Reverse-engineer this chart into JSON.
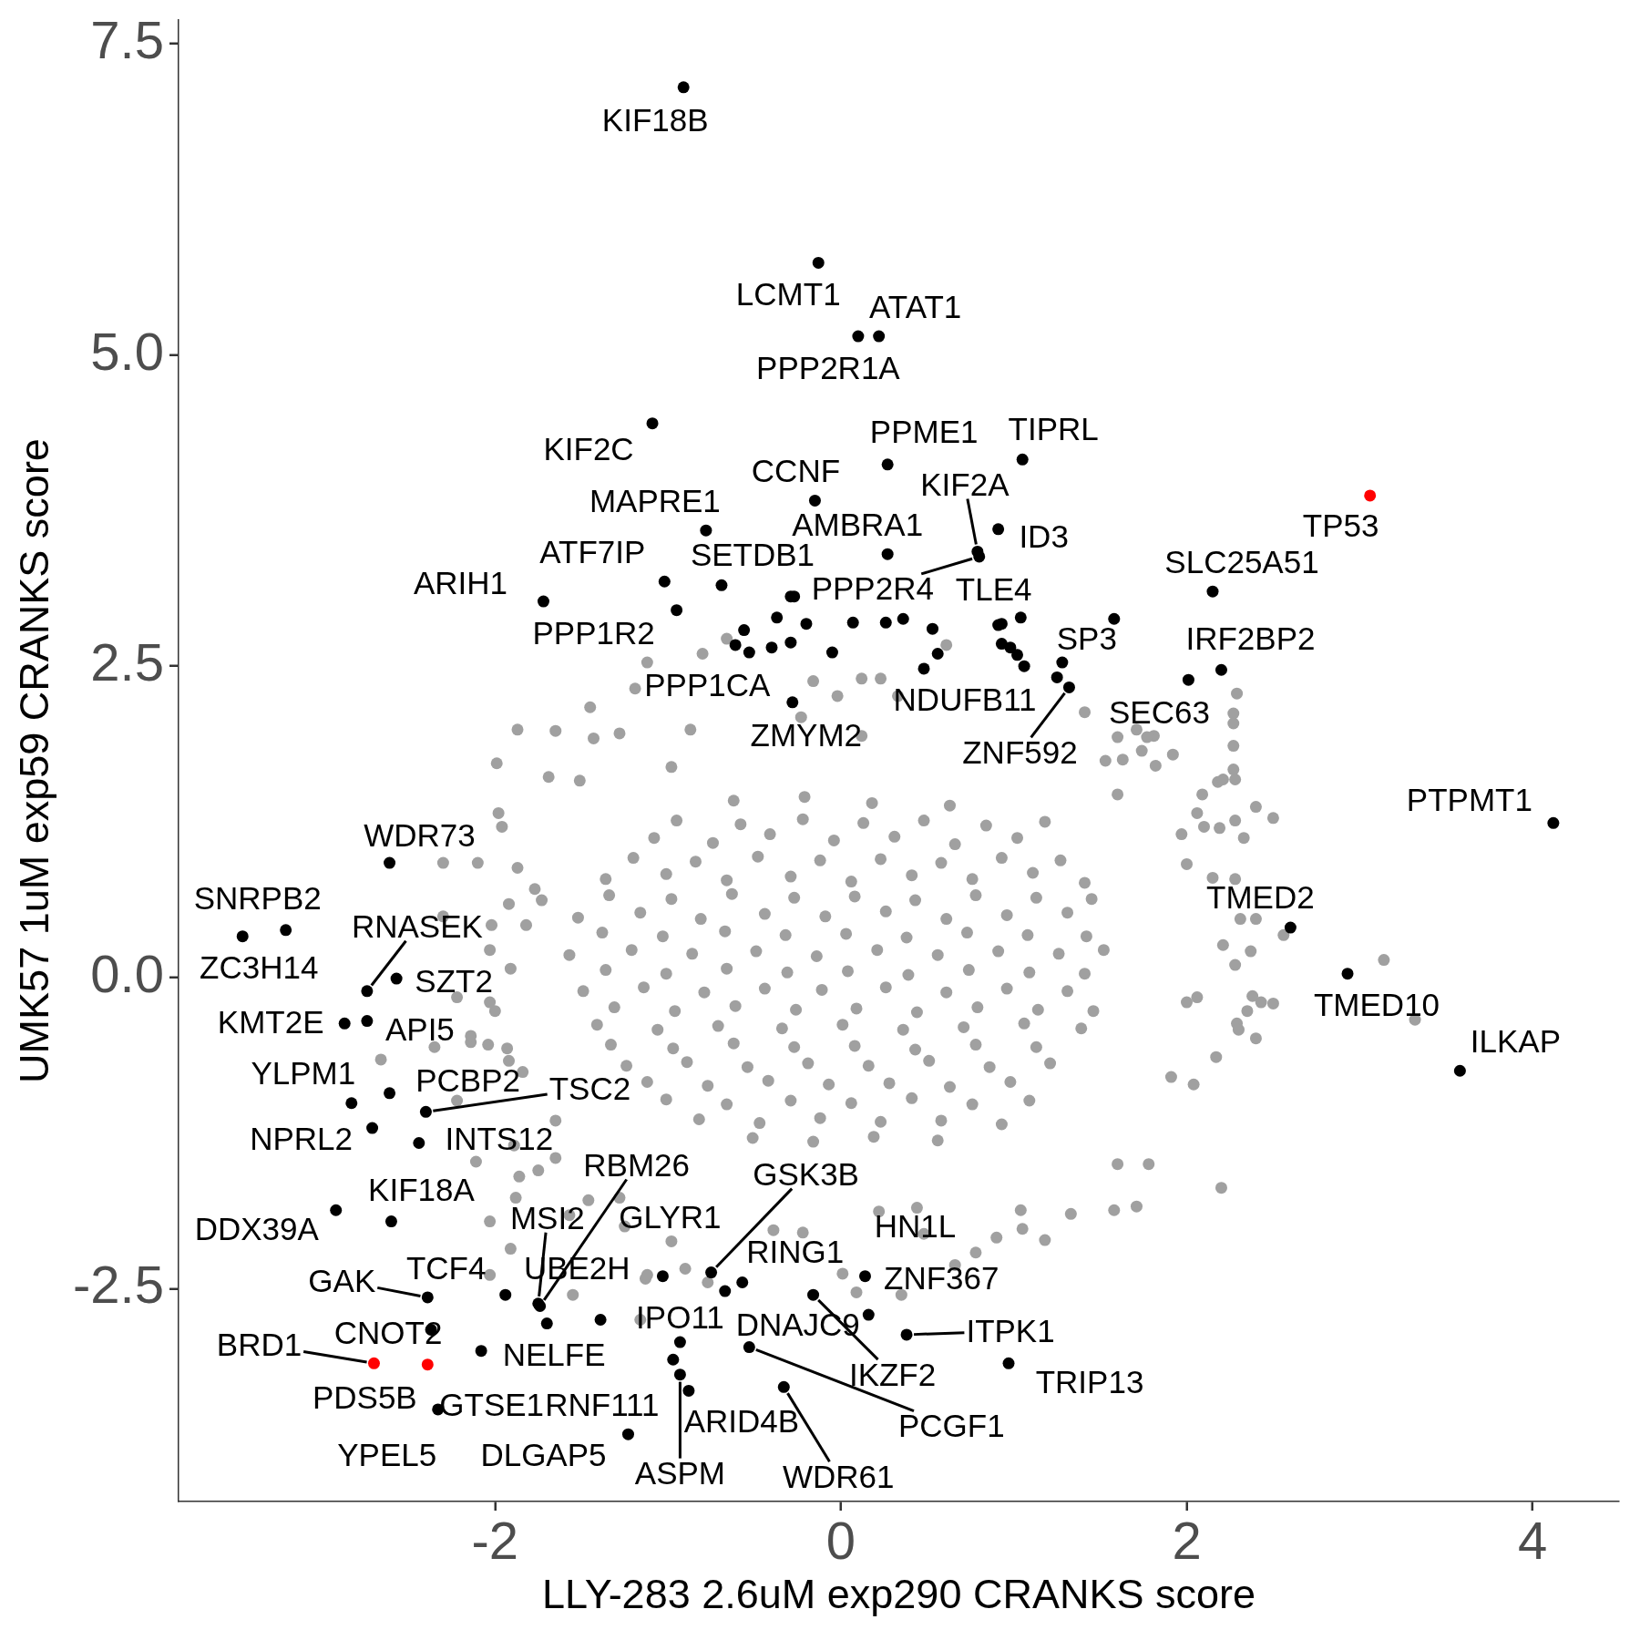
{
  "chart_data": {
    "type": "scatter",
    "xlabel": "LLY-283 2.6uM exp290 CRANKS score",
    "ylabel": "UMK57 1uM exp59 CRANKS score",
    "xlim": [
      -3.83,
      4.5
    ],
    "ylim": [
      -4.21,
      7.69
    ],
    "xticks": [
      -2,
      0,
      2,
      4
    ],
    "yticks": [
      -2.5,
      {
        "value": 0,
        "label": "0.0"
      },
      2.5,
      {
        "value": 5,
        "label": "5.0"
      },
      7.5
    ],
    "grid": false,
    "legend": false,
    "marker": "circle",
    "series": [
      {
        "color": "#a0a0a0",
        "x": [
          -0.66,
          -0.8,
          -1.12,
          -1.19,
          -1.45,
          -1.87,
          -1.65,
          -1.43,
          -1.28,
          -1.99,
          -1.69,
          -1.51,
          -1.98,
          -1.96,
          -2.3,
          -2.1,
          -1.87,
          -1.77,
          -1.73,
          -2.02,
          -1.82,
          -2.03,
          -1.91,
          -2.0,
          -2.14,
          -1.93,
          -1.84,
          -1.65,
          -1.89,
          -1.65,
          -1.86,
          -1.28,
          -1.57,
          1.18,
          1.04,
          1.78,
          1.6,
          1.58,
          1.71,
          2.2,
          2.04,
          2.17,
          2.4,
          2.29,
          2.43,
          2.5,
          2.38,
          2.56,
          2.4,
          2.31,
          2.5,
          2.4,
          2.06,
          2.27,
          2.29,
          2.27,
          2.27,
          2.18,
          1.6,
          1.74,
          1.92,
          1.53,
          1.81,
          1.41,
          0.61,
          0.23,
          0.12,
          -0.16,
          -0.02,
          0.33,
          0.12,
          -0.23,
          -0.87,
          -0.98,
          -1.91,
          -1.55,
          -1.13,
          -0.9,
          -1.16,
          -0.77,
          0.09,
          0.01,
          0.35,
          0.66,
          1.33,
          0.78,
          1.05,
          0.9,
          0.48,
          -0.22,
          -0.39,
          -0.98,
          -1.25,
          -1.46,
          -1.75,
          0.22,
          0.44,
          2.27,
          2.28,
          2.21,
          2.09,
          1.82,
          1.77,
          1.71,
          1.6,
          1.63,
          2.33,
          2.28,
          2.19,
          2.1,
          1.97,
          2.0,
          2.28,
          2.15,
          2.37,
          2.21,
          2.28,
          2.35,
          2.3,
          1.91,
          3.14,
          3.32,
          2.06,
          2.0,
          -1.92,
          -2.3,
          -2.22,
          -2.03,
          -2.14,
          -2.04,
          -2.35,
          -2.66,
          -1.92,
          -2.22,
          -2.11,
          -1.88,
          -2.03,
          -2.03,
          -1.12,
          -0.62,
          -0.21,
          0.18,
          0.63,
          -1.08,
          -0.74,
          -0.41,
          -0.04,
          0.31,
          0.66,
          1.02,
          -1.36,
          -1.01,
          -0.66,
          -0.29,
          0.06,
          0.41,
          0.76,
          1.11,
          1.41,
          -1.52,
          -1.16,
          -0.81,
          -0.44,
          -0.09,
          0.26,
          0.61,
          0.96,
          1.31,
          -1.57,
          -1.21,
          -0.86,
          -0.49,
          -0.14,
          0.21,
          0.56,
          0.91,
          1.26,
          1.52,
          -1.49,
          -1.14,
          -0.79,
          -0.44,
          -0.11,
          0.26,
          0.61,
          0.96,
          1.31,
          -1.41,
          -1.06,
          -0.71,
          -0.34,
          0.01,
          0.36,
          0.71,
          1.06,
          1.39,
          -1.24,
          -0.89,
          -0.54,
          -0.19,
          0.16,
          0.51,
          0.86,
          1.21,
          -1.01,
          -0.66,
          -0.29,
          0.06,
          0.41,
          0.76,
          1.09,
          -0.51,
          -0.16,
          0.19,
          0.56,
          -0.95,
          -0.58,
          -0.22,
          0.13,
          0.48,
          0.84,
          1.18,
          -1.2,
          -0.84,
          -0.48,
          -0.12,
          0.23,
          0.58,
          0.93,
          1.27,
          -1.34,
          -0.98,
          -0.63,
          -0.27,
          0.08,
          0.43,
          0.78,
          1.13,
          1.45,
          -1.38,
          -1.03,
          -0.67,
          -0.32,
          0.03,
          0.38,
          0.73,
          1.08,
          1.42,
          -1.36,
          -1.01,
          -0.66,
          -0.31,
          0.04,
          0.39,
          0.74,
          1.09,
          1.41,
          -1.31,
          -0.96,
          -0.61,
          -0.26,
          0.09,
          0.44,
          0.79,
          1.14,
          1.46,
          -1.33,
          -0.97,
          -0.62,
          -0.27,
          0.08,
          0.43,
          0.78,
          1.13,
          -1.12,
          -0.77,
          -0.42,
          -0.07,
          0.28,
          0.63,
          0.98,
          -0.82,
          -0.47,
          -0.12,
          0.23,
          0.58,
          0.93
        ],
        "values": [
          2.72,
          2.6,
          2.53,
          2.32,
          2.17,
          1.99,
          1.98,
          1.92,
          1.96,
          1.72,
          1.61,
          1.58,
          1.32,
          1.21,
          0.92,
          0.92,
          0.88,
          0.71,
          0.62,
          0.42,
          0.42,
          0.22,
          0.07,
          -0.27,
          -0.52,
          -0.57,
          -0.76,
          -1.15,
          -1.35,
          -1.45,
          -1.6,
          -1.77,
          -1.91,
          -2.11,
          -1.87,
          -1.5,
          -1.5,
          -1.87,
          -1.84,
          -1.69,
          -0.86,
          -0.64,
          -0.49,
          -0.37,
          -0.2,
          -0.21,
          -0.15,
          0.34,
          0.47,
          0.47,
          1.28,
          1.37,
          1.32,
          1.67,
          2.28,
          2.04,
          1.86,
          1.57,
          1.47,
          1.82,
          1.79,
          1.74,
          1.94,
          2.13,
          2.67,
          2.4,
          2.4,
          2.38,
          2.26,
          2.26,
          1.94,
          2.09,
          1.99,
          1.69,
          -2.18,
          -2.55,
          -2.42,
          -2.34,
          -2.75,
          -2.45,
          -2.53,
          -2.38,
          -2.55,
          -2.31,
          -1.9,
          -2.21,
          -2.02,
          -2.09,
          -2.06,
          -2.05,
          -2.03,
          -2.12,
          -2.0,
          -1.79,
          -1.55,
          -1.88,
          -1.85,
          2.12,
          1.59,
          1.59,
          1.47,
          1.7,
          1.93,
          1.99,
          1.93,
          1.75,
          1.12,
          1.26,
          1.2,
          1.21,
          1.15,
          0.91,
          0.79,
          0.8,
          0.21,
          0.26,
          0.1,
          -0.27,
          -0.42,
          -0.8,
          0.14,
          -0.34,
          -0.16,
          -0.2,
          0.59,
          0.49,
          -0.16,
          -0.2,
          -0.47,
          -0.54,
          -0.56,
          -0.66,
          -0.67,
          -0.99,
          -1.48,
          -1.77,
          -1.96,
          -2.39,
          -2.39,
          1.42,
          1.45,
          1.4,
          1.38,
          1.12,
          1.08,
          1.15,
          1.1,
          1.13,
          1.07,
          1.12,
          0.79,
          0.83,
          0.78,
          0.81,
          0.77,
          0.82,
          0.79,
          0.84,
          0.76,
          0.48,
          0.52,
          0.47,
          0.51,
          0.49,
          0.53,
          0.47,
          0.5,
          0.52,
          0.18,
          0.22,
          0.19,
          0.21,
          0.17,
          0.22,
          0.18,
          0.21,
          0.19,
          0.22,
          -0.11,
          -0.08,
          -0.12,
          -0.09,
          -0.1,
          -0.08,
          -0.12,
          -0.09,
          -0.11,
          -0.38,
          -0.42,
          -0.39,
          -0.41,
          -0.38,
          -0.42,
          -0.4,
          -0.37,
          -0.41,
          -0.71,
          -0.68,
          -0.72,
          -0.69,
          -0.71,
          -0.67,
          -0.72,
          -0.69,
          -0.98,
          -1.02,
          -0.99,
          -1.01,
          -0.97,
          -1.02,
          -0.99,
          -1.29,
          -1.32,
          -1.28,
          -1.31,
          1.26,
          1.23,
          1.27,
          1.24,
          1.26,
          1.22,
          1.25,
          0.96,
          0.93,
          0.97,
          0.94,
          0.95,
          0.92,
          0.96,
          0.94,
          0.66,
          0.63,
          0.67,
          0.64,
          0.65,
          0.62,
          0.66,
          0.64,
          0.63,
          0.36,
          0.33,
          0.37,
          0.34,
          0.35,
          0.32,
          0.36,
          0.34,
          0.33,
          0.06,
          0.03,
          0.07,
          0.04,
          0.05,
          0.02,
          0.06,
          0.04,
          0.03,
          -0.24,
          -0.27,
          -0.23,
          -0.26,
          -0.25,
          -0.28,
          -0.24,
          -0.26,
          -0.27,
          -0.54,
          -0.57,
          -0.53,
          -0.56,
          -0.55,
          -0.58,
          -0.54,
          -0.56,
          -0.84,
          -0.87,
          -0.83,
          -0.86,
          -0.85,
          -0.88,
          -0.84,
          -1.14,
          -1.17,
          -1.13,
          -1.16,
          -1.15,
          -1.18
        ]
      },
      {
        "color": "#000000",
        "x": [
          -0.91,
          -0.13,
          0.1,
          0.22,
          -1.09,
          0.27,
          1.05,
          -0.15,
          0.79,
          0.91,
          0.91,
          0.27,
          -0.78,
          -1.02,
          -0.69,
          -1.72,
          -0.95,
          0.8,
          -0.53,
          -0.28,
          0.48,
          1.28,
          1.32,
          2.15,
          2.2,
          2.01,
          4.12,
          2.6,
          2.93,
          3.58,
          -2.61,
          -3.21,
          -3.46,
          -2.74,
          -2.57,
          -2.87,
          -2.74,
          -2.83,
          -2.61,
          -2.4,
          -2.71,
          -2.44,
          -2.6,
          -2.92,
          -2.39,
          -1.94,
          -2.37,
          -2.08,
          -2.33,
          -0.97,
          -1.23,
          -0.93,
          -0.88,
          -0.93,
          -1.74,
          -1.75,
          -1.7,
          -1.03,
          -0.75,
          -0.57,
          -0.67,
          -0.16,
          -0.53,
          -0.33,
          0.14,
          0.16,
          0.38,
          0.97,
          -0.29,
          -0.27,
          -0.56,
          -0.61,
          -0.4,
          -0.37,
          -0.29,
          -0.2,
          -0.05,
          0.07,
          0.26,
          0.36,
          0.53,
          0.56,
          0.93,
          1.04,
          0.93,
          0.98,
          1.02,
          1.06,
          1.25,
          1.58,
          -1.39
        ],
        "values": [
          7.15,
          5.74,
          5.15,
          5.15,
          4.45,
          4.12,
          4.16,
          3.83,
          3.42,
          2.83,
          3.6,
          3.4,
          3.59,
          3.18,
          3.15,
          3.02,
          2.95,
          3.38,
          2.61,
          2.21,
          2.48,
          2.53,
          2.33,
          3.1,
          2.47,
          2.39,
          1.24,
          0.4,
          0.03,
          -0.75,
          0.92,
          0.38,
          0.33,
          -0.11,
          -0.01,
          -0.37,
          -0.35,
          -1.01,
          -0.93,
          -1.08,
          -1.21,
          -1.33,
          -1.96,
          -1.87,
          -2.57,
          -2.55,
          -2.83,
          -3.0,
          -3.47,
          -3.07,
          -3.67,
          -3.19,
          -3.32,
          -2.93,
          -2.64,
          -2.62,
          -2.78,
          -2.4,
          -2.37,
          -2.45,
          -2.52,
          -2.55,
          -2.97,
          -3.29,
          -2.4,
          -2.71,
          -2.87,
          -3.1,
          3.06,
          3.06,
          2.79,
          2.67,
          2.65,
          2.89,
          2.69,
          2.84,
          2.61,
          2.85,
          2.85,
          2.88,
          2.8,
          2.6,
          2.84,
          2.89,
          2.68,
          2.65,
          2.59,
          2.5,
          2.41,
          2.88,
          -2.75
        ]
      },
      {
        "color": "#ff0000",
        "x": [
          3.06,
          -2.7,
          -2.39
        ],
        "values": [
          3.87,
          -3.1,
          -3.11
        ]
      }
    ],
    "annotations": [
      {
        "text": "KIF18B",
        "x": -0.91,
        "y": 7.15
      },
      {
        "text": "LCMT1",
        "x": -0.13,
        "y": 5.74
      },
      {
        "text": "PPP2R1A",
        "x": 0.1,
        "y": 5.15
      },
      {
        "text": "ATAT1",
        "x": 0.22,
        "y": 5.15
      },
      {
        "text": "KIF2C",
        "x": -1.09,
        "y": 4.45
      },
      {
        "text": "PPME1",
        "x": 0.27,
        "y": 4.12
      },
      {
        "text": "TIPRL",
        "x": 1.05,
        "y": 4.16
      },
      {
        "text": "CCNF",
        "x": -0.15,
        "y": 3.83
      },
      {
        "text": "KIF2A",
        "x": 0.79,
        "y": 3.42
      },
      {
        "text": "TLE4",
        "x": 0.91,
        "y": 2.83
      },
      {
        "text": "ID3",
        "x": 0.91,
        "y": 3.6
      },
      {
        "text": "AMBRA1",
        "x": 0.27,
        "y": 3.4
      },
      {
        "text": "MAPRE1",
        "x": -0.78,
        "y": 3.59
      },
      {
        "text": "ATF7IP",
        "x": -1.02,
        "y": 3.18
      },
      {
        "text": "SETDB1",
        "x": -0.69,
        "y": 3.15
      },
      {
        "text": "ARIH1",
        "x": -1.72,
        "y": 3.02
      },
      {
        "text": "PPP1R2",
        "x": -0.95,
        "y": 2.95
      },
      {
        "text": "PPP2R4",
        "x": 0.8,
        "y": 3.38
      },
      {
        "text": "PPP1CA",
        "x": -0.53,
        "y": 2.61
      },
      {
        "text": "ZMYM2",
        "x": -0.28,
        "y": 2.21
      },
      {
        "text": "NDUFB11",
        "x": 0.48,
        "y": 2.48
      },
      {
        "text": "SP3",
        "x": 1.28,
        "y": 2.53
      },
      {
        "text": "ZNF592",
        "x": 1.32,
        "y": 2.33
      },
      {
        "text": "SLC25A51",
        "x": 2.15,
        "y": 3.1
      },
      {
        "text": "IRF2BP2",
        "x": 2.2,
        "y": 2.47
      },
      {
        "text": "SEC63",
        "x": 2.01,
        "y": 2.39
      },
      {
        "text": "TP53",
        "x": 3.06,
        "y": 3.87
      },
      {
        "text": "PTPMT1",
        "x": 4.12,
        "y": 1.24
      },
      {
        "text": "TMED2",
        "x": 2.6,
        "y": 0.4
      },
      {
        "text": "TMED10",
        "x": 2.93,
        "y": 0.03
      },
      {
        "text": "ILKAP",
        "x": 3.58,
        "y": -0.75
      },
      {
        "text": "WDR73",
        "x": -2.61,
        "y": 0.92
      },
      {
        "text": "SNRPB2",
        "x": -3.21,
        "y": 0.38
      },
      {
        "text": "ZC3H14",
        "x": -3.46,
        "y": 0.33
      },
      {
        "text": "RNASEK",
        "x": -2.74,
        "y": -0.11
      },
      {
        "text": "SZT2",
        "x": -2.57,
        "y": -0.01
      },
      {
        "text": "KMT2E",
        "x": -2.87,
        "y": -0.37
      },
      {
        "text": "API5",
        "x": -2.74,
        "y": -0.35
      },
      {
        "text": "YLPM1",
        "x": -2.83,
        "y": -1.01
      },
      {
        "text": "PCBP2",
        "x": -2.61,
        "y": -0.93
      },
      {
        "text": "TSC2",
        "x": -2.4,
        "y": -1.08
      },
      {
        "text": "NPRL2",
        "x": -2.71,
        "y": -1.21
      },
      {
        "text": "INTS12",
        "x": -2.44,
        "y": -1.33
      },
      {
        "text": "KIF18A",
        "x": -2.6,
        "y": -1.96
      },
      {
        "text": "DDX39A",
        "x": -2.92,
        "y": -1.87
      },
      {
        "text": "GAK",
        "x": -2.39,
        "y": -2.57
      },
      {
        "text": "TCF4",
        "x": -1.94,
        "y": -2.55
      },
      {
        "text": "CNOT2",
        "x": -2.37,
        "y": -2.83
      },
      {
        "text": "BRD1",
        "x": -2.7,
        "y": -3.1
      },
      {
        "text": "PDS5B",
        "x": -2.39,
        "y": -3.11
      },
      {
        "text": "NELFE",
        "x": -2.08,
        "y": -3.0
      },
      {
        "text": "GTSE1",
        "x": -2.33,
        "y": -3.47
      },
      {
        "text": "YPEL5",
        "x": -2.33,
        "y": -3.47
      },
      {
        "text": "RNF111",
        "x": -0.97,
        "y": -3.07
      },
      {
        "text": "DLGAP5",
        "x": -1.23,
        "y": -3.67
      },
      {
        "text": "ASPM",
        "x": -0.93,
        "y": -3.19
      },
      {
        "text": "ARID4B",
        "x": -0.88,
        "y": -3.32
      },
      {
        "text": "IPO11",
        "x": -0.93,
        "y": -2.93
      },
      {
        "text": "RBM26",
        "x": -1.74,
        "y": -2.64
      },
      {
        "text": "MSI2",
        "x": -1.75,
        "y": -2.62
      },
      {
        "text": "UBE2H",
        "x": -1.7,
        "y": -2.78
      },
      {
        "text": "GLYR1",
        "x": -1.03,
        "y": -2.4
      },
      {
        "text": "GSK3B",
        "x": -0.75,
        "y": -2.37
      },
      {
        "text": "RING1",
        "x": -0.57,
        "y": -2.45
      },
      {
        "text": "DNAJC9",
        "x": -0.67,
        "y": -2.52
      },
      {
        "text": "IKZF2",
        "x": -0.16,
        "y": -2.55
      },
      {
        "text": "PCGF1",
        "x": -0.53,
        "y": -2.97
      },
      {
        "text": "WDR61",
        "x": -0.33,
        "y": -3.29
      },
      {
        "text": "HN1L",
        "x": 0.14,
        "y": -2.4
      },
      {
        "text": "ZNF367",
        "x": 0.16,
        "y": -2.71
      },
      {
        "text": "ITPK1",
        "x": 0.38,
        "y": -2.87
      },
      {
        "text": "TRIP13",
        "x": 0.97,
        "y": -3.1
      }
    ]
  }
}
